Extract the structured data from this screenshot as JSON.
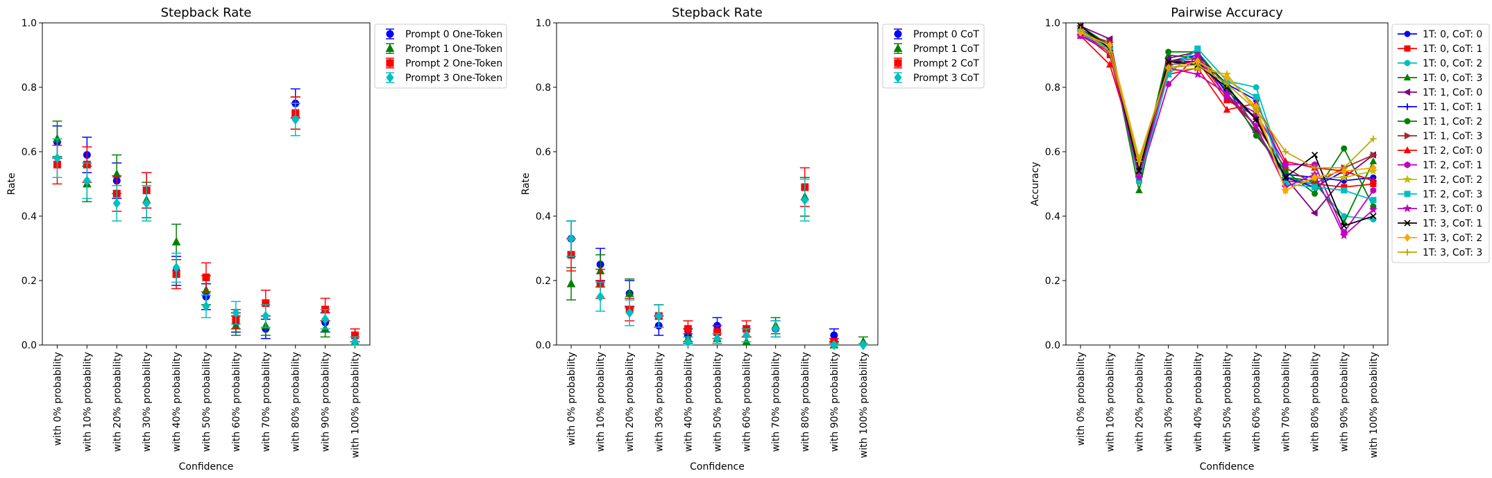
{
  "colors": {
    "blue": "#0000ff",
    "green": "#008000",
    "red": "#ff0000",
    "cyan": "#00bfbf",
    "purple": "#800080",
    "brown": "#a52a2a",
    "magenta": "#bf00bf",
    "olive": "#bfbf00",
    "teal": "#00bfbf",
    "black": "#000000",
    "orange": "#ffa500",
    "goldenrod": "#bfa600"
  },
  "chart_data": [
    {
      "type": "scatter",
      "title": "Stepback Rate",
      "xlabel": "Confidence",
      "ylabel": "Rate",
      "ylim": [
        0,
        1
      ],
      "yticks": [
        "0.0",
        "0.2",
        "0.4",
        "0.6",
        "0.8",
        "1.0"
      ],
      "categories": [
        "with 0% probability",
        "with 10% probability",
        "with 20% probability",
        "with 30% probability",
        "with 40% probability",
        "with 50% probability",
        "with 60% probability",
        "with 70% probability",
        "with 80% probability",
        "with 90% probability",
        "with 100% probability"
      ],
      "legend_position": "outside right, top",
      "error_bars": true,
      "series": [
        {
          "name": "Prompt 0 One-Token",
          "marker": "circle",
          "color": "#0000ff",
          "values": [
            0.63,
            0.59,
            0.51,
            0.48,
            0.23,
            0.15,
            0.07,
            0.05,
            0.75,
            0.07,
            0.03
          ],
          "errors": [
            0.05,
            0.055,
            0.055,
            0.055,
            0.045,
            0.04,
            0.03,
            0.03,
            0.045,
            0.03,
            0.02
          ]
        },
        {
          "name": "Prompt 1 One-Token",
          "marker": "triangle",
          "color": "#008000",
          "values": [
            0.64,
            0.5,
            0.53,
            0.45,
            0.32,
            0.17,
            0.06,
            0.06,
            0.72,
            0.05,
            0.01
          ],
          "errors": [
            0.055,
            0.055,
            0.06,
            0.055,
            0.055,
            0.045,
            0.03,
            0.03,
            0.05,
            0.025,
            0.015
          ]
        },
        {
          "name": "Prompt 2 One-Token",
          "marker": "square",
          "color": "#ff0000",
          "values": [
            0.56,
            0.56,
            0.47,
            0.48,
            0.22,
            0.21,
            0.08,
            0.13,
            0.72,
            0.11,
            0.03
          ],
          "errors": [
            0.06,
            0.055,
            0.055,
            0.055,
            0.045,
            0.045,
            0.03,
            0.04,
            0.05,
            0.035,
            0.02
          ]
        },
        {
          "name": "Prompt 3 One-Token",
          "marker": "diamond",
          "color": "#00bfbf",
          "values": [
            0.58,
            0.51,
            0.44,
            0.44,
            0.24,
            0.12,
            0.1,
            0.09,
            0.7,
            0.08,
            0.01
          ],
          "errors": [
            0.06,
            0.055,
            0.055,
            0.055,
            0.045,
            0.035,
            0.035,
            0.035,
            0.05,
            0.03,
            0.015
          ]
        }
      ]
    },
    {
      "type": "scatter",
      "title": "Stepback Rate",
      "xlabel": "Confidence",
      "ylabel": "Rate",
      "ylim": [
        0,
        1
      ],
      "yticks": [
        "0.0",
        "0.2",
        "0.4",
        "0.6",
        "0.8",
        "1.0"
      ],
      "categories": [
        "with 0% probability",
        "with 10% probability",
        "with 20% probability",
        "with 30% probability",
        "with 40% probability",
        "with 50% probability",
        "with 60% probability",
        "with 70% probability",
        "with 80% probability",
        "with 90% probability",
        "with 100% probability"
      ],
      "legend_position": "outside right, top",
      "error_bars": true,
      "series": [
        {
          "name": "Prompt 0 CoT",
          "marker": "circle",
          "color": "#0000ff",
          "values": [
            0.33,
            0.25,
            0.16,
            0.06,
            0.03,
            0.06,
            null,
            0.05,
            null,
            0.03,
            null
          ],
          "errors": [
            0.055,
            0.05,
            0.04,
            0.03,
            0.02,
            0.025,
            null,
            0.025,
            null,
            0.02,
            null
          ]
        },
        {
          "name": "Prompt 1 CoT",
          "marker": "triangle",
          "color": "#008000",
          "values": [
            0.19,
            0.23,
            0.16,
            0.09,
            0.02,
            0.02,
            0.01,
            0.06,
            0.46,
            0.0,
            0.01
          ],
          "errors": [
            0.05,
            0.05,
            0.045,
            0.035,
            0.015,
            0.015,
            0.015,
            0.025,
            0.06,
            0.005,
            0.015
          ]
        },
        {
          "name": "Prompt 2 CoT",
          "marker": "square",
          "color": "#ff0000",
          "values": [
            0.28,
            0.19,
            0.11,
            0.09,
            0.05,
            0.04,
            0.05,
            null,
            0.49,
            0.01,
            null
          ],
          "errors": [
            0.05,
            0.045,
            0.035,
            0.035,
            0.025,
            0.02,
            0.025,
            null,
            0.06,
            0.01,
            null
          ]
        },
        {
          "name": "Prompt 3 CoT",
          "marker": "diamond",
          "color": "#00bfbf",
          "values": [
            0.33,
            0.15,
            0.1,
            0.09,
            0.01,
            0.02,
            0.03,
            0.05,
            0.45,
            0.0,
            0.0
          ],
          "errors": [
            0.055,
            0.045,
            0.04,
            0.035,
            0.015,
            0.015,
            0.02,
            0.025,
            0.065,
            0.005,
            0.005
          ]
        }
      ]
    },
    {
      "type": "line",
      "title": "Pairwise Accuracy",
      "xlabel": "Confidence",
      "ylabel": "Accuracy",
      "ylim": [
        0,
        1
      ],
      "yticks": [
        "0.0",
        "0.2",
        "0.4",
        "0.6",
        "0.8",
        "1.0"
      ],
      "categories": [
        "with 0% probability",
        "with 10% probability",
        "with 20% probability",
        "with 30% probability",
        "with 40% probability",
        "with 50% probability",
        "with 60% probability",
        "with 70% probability",
        "with 80% probability",
        "with 90% probability",
        "with 100% probability"
      ],
      "legend_position": "outside right, top",
      "series": [
        {
          "name": "1T: 0, CoT: 0",
          "marker": "circle",
          "color": "#0000ff",
          "values": [
            0.98,
            0.93,
            0.55,
            0.88,
            0.9,
            0.81,
            0.76,
            0.53,
            0.52,
            0.51,
            0.52
          ]
        },
        {
          "name": "1T: 0, CoT: 1",
          "marker": "square",
          "color": "#ff0000",
          "values": [
            0.97,
            0.9,
            0.53,
            0.87,
            0.88,
            0.76,
            0.71,
            0.51,
            0.5,
            0.49,
            0.5
          ]
        },
        {
          "name": "1T: 0, CoT: 2",
          "marker": "circle",
          "color": "#00bfbf",
          "values": [
            0.97,
            0.91,
            0.52,
            0.86,
            0.92,
            0.82,
            0.8,
            0.52,
            0.5,
            0.4,
            0.39
          ]
        },
        {
          "name": "1T: 0, CoT: 3",
          "marker": "triangle",
          "color": "#008000",
          "values": [
            0.99,
            0.93,
            0.48,
            0.9,
            0.89,
            0.81,
            0.67,
            0.52,
            0.51,
            0.38,
            0.57
          ]
        },
        {
          "name": "1T: 1, CoT: 0",
          "marker": "triangle-left",
          "color": "#800080",
          "values": [
            0.99,
            0.95,
            0.52,
            0.89,
            0.91,
            0.78,
            0.66,
            0.52,
            0.41,
            0.52,
            0.59
          ]
        },
        {
          "name": "1T: 1, CoT: 1",
          "marker": "plus",
          "color": "#0000ff",
          "values": [
            0.98,
            0.91,
            0.55,
            0.88,
            0.88,
            0.79,
            0.7,
            0.52,
            0.49,
            0.54,
            0.51
          ]
        },
        {
          "name": "1T: 1, CoT: 2",
          "marker": "circle",
          "color": "#008000",
          "values": [
            0.98,
            0.92,
            0.52,
            0.91,
            0.91,
            0.8,
            0.65,
            0.54,
            0.47,
            0.61,
            0.43
          ]
        },
        {
          "name": "1T: 1, CoT: 3",
          "marker": "triangle-right",
          "color": "#a52a2a",
          "values": [
            0.97,
            0.94,
            0.54,
            0.88,
            0.89,
            0.77,
            0.68,
            0.55,
            0.5,
            0.55,
            0.59
          ]
        },
        {
          "name": "1T: 2, CoT: 0",
          "marker": "triangle",
          "color": "#ff0000",
          "values": [
            0.96,
            0.87,
            0.57,
            0.84,
            0.86,
            0.73,
            0.75,
            0.57,
            0.55,
            0.54,
            0.51
          ]
        },
        {
          "name": "1T: 2, CoT: 1",
          "marker": "hexagon",
          "color": "#bf00bf",
          "values": [
            0.96,
            0.92,
            0.51,
            0.81,
            0.9,
            0.77,
            0.72,
            0.56,
            0.56,
            0.35,
            0.48
          ]
        },
        {
          "name": "1T: 2, CoT: 2",
          "marker": "star",
          "color": "#bfbf00",
          "values": [
            0.97,
            0.92,
            0.56,
            0.85,
            0.86,
            0.84,
            0.73,
            0.48,
            0.52,
            0.52,
            0.54
          ]
        },
        {
          "name": "1T: 2, CoT: 3",
          "marker": "square",
          "color": "#00bfbf",
          "values": [
            0.97,
            0.92,
            0.51,
            0.84,
            0.92,
            0.82,
            0.77,
            0.5,
            0.49,
            0.48,
            0.45
          ]
        },
        {
          "name": "1T: 3, CoT: 0",
          "marker": "star",
          "color": "#bf00bf",
          "values": [
            0.96,
            0.91,
            0.52,
            0.86,
            0.84,
            0.78,
            0.68,
            0.49,
            0.53,
            0.34,
            0.42
          ]
        },
        {
          "name": "1T: 3, CoT: 1",
          "marker": "x",
          "color": "#000000",
          "values": [
            0.99,
            0.92,
            0.54,
            0.88,
            0.87,
            0.8,
            0.7,
            0.52,
            0.59,
            0.37,
            0.4
          ]
        },
        {
          "name": "1T: 3, CoT: 2",
          "marker": "diamond",
          "color": "#ffa500",
          "values": [
            0.97,
            0.93,
            0.58,
            0.86,
            0.88,
            0.83,
            0.74,
            0.48,
            0.52,
            0.54,
            0.55
          ]
        },
        {
          "name": "1T: 3, CoT: 3",
          "marker": "plus",
          "color": "#bfa600",
          "values": [
            0.98,
            0.91,
            0.57,
            0.86,
            0.87,
            0.81,
            0.73,
            0.6,
            0.55,
            0.55,
            0.64
          ]
        }
      ]
    }
  ]
}
